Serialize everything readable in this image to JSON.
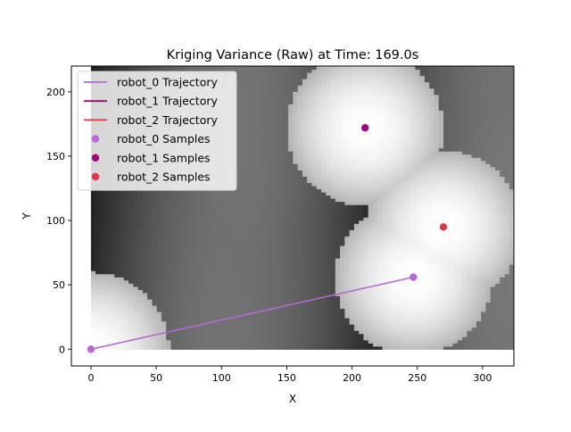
{
  "chart_data": {
    "type": "heatmap",
    "title": "Kriging Variance (Raw) at Time: 169.0s",
    "xlabel": "X",
    "ylabel": "Y",
    "xlim": [
      -15,
      324
    ],
    "ylim": [
      -13,
      220
    ],
    "heatmap_extent": {
      "x": [
        0,
        324
      ],
      "y": [
        0,
        220
      ]
    },
    "grid": false,
    "legend_position": "top-left",
    "xticks": [
      0,
      50,
      100,
      150,
      200,
      250,
      300
    ],
    "yticks": [
      0,
      50,
      100,
      150,
      200
    ],
    "colormap": "gray (white = low variance, black = high variance)",
    "series": [
      {
        "name": "robot_0 Trajectory",
        "kind": "line",
        "color": "#b767d6",
        "points": [
          [
            0,
            0
          ],
          [
            247,
            56
          ]
        ]
      },
      {
        "name": "robot_1 Trajectory",
        "kind": "line",
        "color": "#a0047a",
        "points": [
          [
            210,
            172
          ]
        ]
      },
      {
        "name": "robot_2 Trajectory",
        "kind": "line",
        "color": "#e03548",
        "points": [
          [
            270,
            95
          ]
        ]
      },
      {
        "name": "robot_0 Samples",
        "kind": "scatter",
        "color": "#b767d6",
        "points": [
          [
            0,
            0
          ],
          [
            247,
            56
          ]
        ]
      },
      {
        "name": "robot_1 Samples",
        "kind": "scatter",
        "color": "#a0047a",
        "points": [
          [
            210,
            172
          ]
        ]
      },
      {
        "name": "robot_2 Samples",
        "kind": "scatter",
        "color": "#e03548",
        "points": [
          [
            270,
            95
          ]
        ]
      }
    ]
  }
}
